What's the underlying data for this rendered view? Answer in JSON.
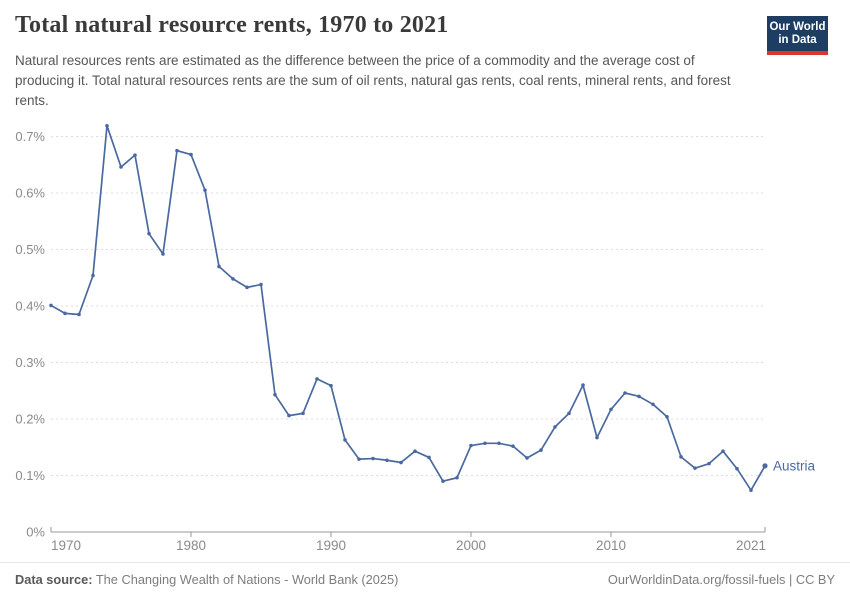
{
  "header": {
    "title": "Total natural resource rents, 1970 to 2021",
    "subtitle": "Natural resources rents are estimated as the difference between the price of a commodity and the average cost of producing it. Total natural resources rents are the sum of oil rents, natural gas rents, coal rents, mineral rents, and forest rents.",
    "logo": {
      "line1": "Our World",
      "line2": "in Data",
      "bg_color": "#1d3d63",
      "stripe_color": "#dc352c"
    }
  },
  "chart_data": {
    "type": "line",
    "title": "Total natural resource rents, 1970 to 2021",
    "unit": "%",
    "grid": "horizontal-dashed",
    "legend_position": "end-of-line-label",
    "xlim": [
      1970,
      2021
    ],
    "ylim": [
      0,
      0.72
    ],
    "x": [
      1970,
      1971,
      1972,
      1973,
      1974,
      1975,
      1976,
      1977,
      1978,
      1979,
      1980,
      1981,
      1982,
      1983,
      1984,
      1985,
      1986,
      1987,
      1988,
      1989,
      1990,
      1991,
      1992,
      1993,
      1994,
      1995,
      1996,
      1997,
      1998,
      1999,
      2000,
      2001,
      2002,
      2003,
      2004,
      2005,
      2006,
      2007,
      2008,
      2009,
      2010,
      2011,
      2012,
      2013,
      2014,
      2015,
      2016,
      2017,
      2018,
      2019,
      2020,
      2021
    ],
    "series": [
      {
        "name": "Austria",
        "color": "#4a69a0",
        "values": [
          0.401,
          0.387,
          0.385,
          0.454,
          0.719,
          0.646,
          0.667,
          0.528,
          0.492,
          0.675,
          0.668,
          0.605,
          0.47,
          0.448,
          0.433,
          0.438,
          0.243,
          0.206,
          0.21,
          0.271,
          0.259,
          0.163,
          0.129,
          0.13,
          0.127,
          0.123,
          0.143,
          0.132,
          0.09,
          0.096,
          0.153,
          0.157,
          0.157,
          0.152,
          0.131,
          0.145,
          0.186,
          0.21,
          0.26,
          0.167,
          0.217,
          0.246,
          0.24,
          0.226,
          0.204,
          0.133,
          0.113,
          0.121,
          0.143,
          0.112,
          0.074,
          0.117
        ]
      }
    ],
    "y_ticks": [
      {
        "value": 0,
        "label": "0%"
      },
      {
        "value": 0.1,
        "label": "0.1%"
      },
      {
        "value": 0.2,
        "label": "0.2%"
      },
      {
        "value": 0.3,
        "label": "0.3%"
      },
      {
        "value": 0.4,
        "label": "0.4%"
      },
      {
        "value": 0.5,
        "label": "0.5%"
      },
      {
        "value": 0.6,
        "label": "0.6%"
      },
      {
        "value": 0.7,
        "label": "0.7%"
      }
    ],
    "x_ticks": [
      {
        "value": 1970,
        "label": "1970"
      },
      {
        "value": 1980,
        "label": "1980"
      },
      {
        "value": 1990,
        "label": "1990"
      },
      {
        "value": 2000,
        "label": "2000"
      },
      {
        "value": 2010,
        "label": "2010"
      },
      {
        "value": 2021,
        "label": "2021"
      }
    ],
    "axis_color": "#9a9a9a",
    "grid_color": "#dcdcdc",
    "tick_label_color": "#8a8a8a"
  },
  "footer": {
    "datasource_label": "Data source:",
    "datasource_text": " The Changing Wealth of Nations - World Bank (2025)",
    "credit": "OurWorldinData.org/fossil-fuels | CC BY"
  }
}
